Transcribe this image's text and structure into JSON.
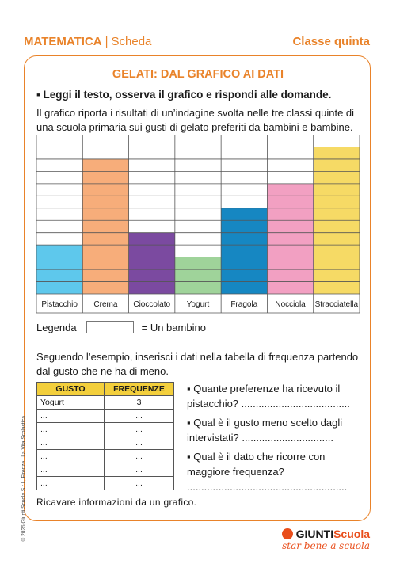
{
  "header": {
    "subject": "MATEMATICA",
    "separator": "|",
    "type": "Scheda",
    "grade": "Classe quinta"
  },
  "title": "GELATI: DAL GRAFICO AI DATI",
  "instruction": "▪ Leggi il testo, osserva il grafico e rispondi alle domande.",
  "paragraph1": "Il grafico riporta i risultati di un’indagine svolta nelle tre classi quinte di una scuola primaria sui gusti di gelato preferiti da bambini e bambine.",
  "chart_data": {
    "type": "bar",
    "categories": [
      "Pistacchio",
      "Crema",
      "Cioccolato",
      "Yogurt",
      "Fragola",
      "Nocciola",
      "Stracciatella"
    ],
    "values": [
      4,
      11,
      5,
      3,
      7,
      9,
      12
    ],
    "colors": [
      "#5ec8ec",
      "#f7ad7a",
      "#7b4aa0",
      "#9fd39a",
      "#1687c2",
      "#f2a0c2",
      "#f6da65"
    ],
    "ylim": [
      0,
      13
    ],
    "grid": true
  },
  "legend": {
    "label": "Legenda",
    "text": "= Un bambino"
  },
  "paragraph2": "Seguendo l’esempio, inserisci i dati nella tabella di frequenza partendo dal gusto che ne ha di meno.",
  "table": {
    "headers": [
      "GUSTO",
      "FREQUENZE"
    ],
    "rows": [
      [
        "Yogurt",
        "3"
      ],
      [
        "...",
        "..."
      ],
      [
        "...",
        "..."
      ],
      [
        "...",
        "..."
      ],
      [
        "...",
        "..."
      ],
      [
        "...",
        "..."
      ],
      [
        "...",
        "..."
      ]
    ]
  },
  "questions": [
    "▪ Quante preferenze ha ricevuto il pistacchio? ......................................",
    "▪ Qual è il gusto meno scelto dagli intervistati? ................................",
    "▪ Qual è il dato che ricorre con maggiore frequenza? ........................................................"
  ],
  "footer": "Ricavare informazioni da un grafico.",
  "copyright": "© 2025 Giunti Scuola S.r.l., Firenze | La Vita Scolastica",
  "logo": {
    "brand": "GIUNTI",
    "brand2": "Scuola",
    "tagline": "star bene a scuola"
  }
}
